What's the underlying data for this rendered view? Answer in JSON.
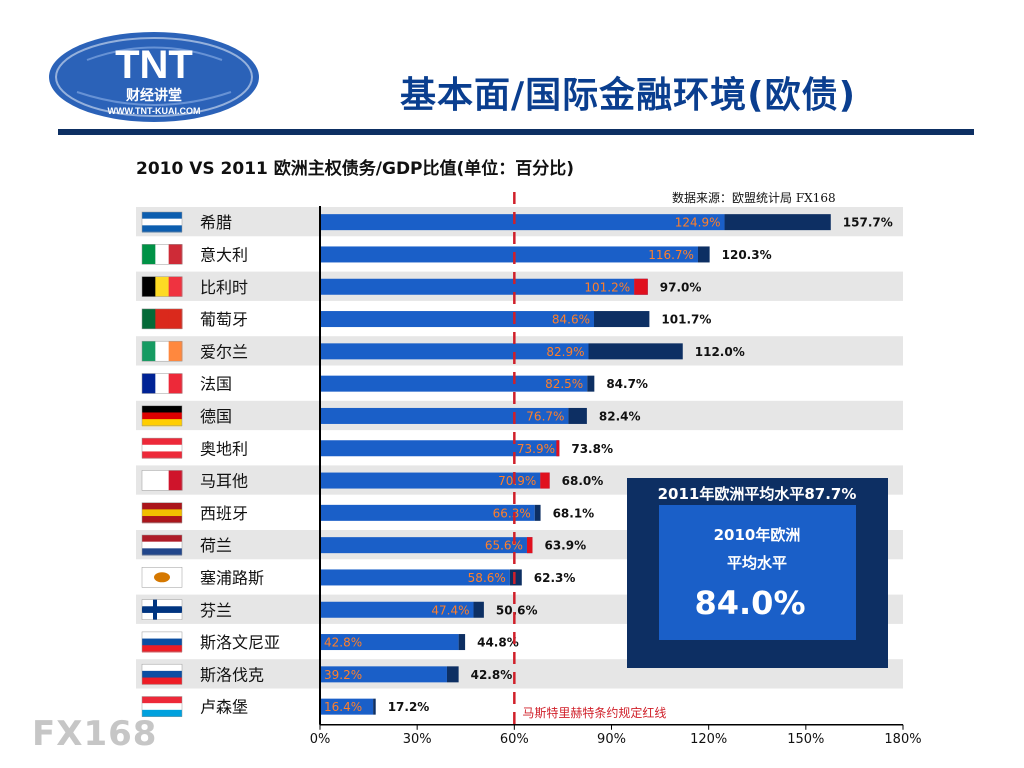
{
  "logo": {
    "brand": "TNT",
    "subtitle": "财经讲堂",
    "url": "WWW.TNT-KUAI.COM"
  },
  "header": {
    "title": "基本面/国际金融环境(欧债)"
  },
  "watermark": "FX168",
  "chart_data": {
    "type": "bar",
    "orientation": "horizontal",
    "title": "2010 VS 2011 欧洲主权债务/GDP比值(单位：百分比)",
    "source": "数据来源：欧盟统计局 FX168",
    "categories": [
      "希腊",
      "意大利",
      "比利时",
      "葡萄牙",
      "爱尔兰",
      "法国",
      "德国",
      "奥地利",
      "马耳他",
      "西班牙",
      "荷兰",
      "塞浦路斯",
      "芬兰",
      "斯洛文尼亚",
      "斯洛伐克",
      "卢森堡"
    ],
    "series": [
      {
        "name": "2010",
        "values": [
          124.9,
          116.7,
          101.2,
          84.6,
          82.9,
          82.5,
          76.7,
          73.9,
          70.9,
          66.3,
          65.6,
          58.6,
          47.4,
          42.8,
          39.2,
          16.4
        ],
        "labels": [
          "124.9%",
          "116.7%",
          "101.2%",
          "84.6%",
          "82.9%",
          "82.5%",
          "76.7%",
          "73.9%",
          "70.9%",
          "66.3%",
          "65.6%",
          "58.6%",
          "47.4%",
          "42.8%",
          "39.2%",
          "16.4%"
        ]
      },
      {
        "name": "2011",
        "values": [
          157.7,
          120.3,
          97.0,
          101.7,
          112.0,
          84.7,
          82.4,
          73.8,
          68.0,
          68.1,
          63.9,
          62.3,
          50.6,
          44.8,
          42.8,
          17.2
        ],
        "labels": [
          "157.7%",
          "120.3%",
          "97.0%",
          "101.7%",
          "112.0%",
          "84.7%",
          "82.4%",
          "73.8%",
          "68.0%",
          "68.1%",
          "63.9%",
          "62.3%",
          "50.6%",
          "44.8%",
          "42.8%",
          "17.2%"
        ]
      }
    ],
    "xlim": [
      0,
      180
    ],
    "xticks": [
      0,
      30,
      60,
      90,
      120,
      150,
      180
    ],
    "xtick_labels": [
      "0%",
      "30%",
      "60%",
      "90%",
      "120%",
      "150%",
      "180%"
    ],
    "reference_line": {
      "value": 60,
      "label": "马斯特里赫特条约规定红线",
      "color": "#d0202a"
    },
    "averages": {
      "avg_2011_label": "2011年欧洲平均水平87.7%",
      "avg_2010_label_line1": "2010年欧洲",
      "avg_2010_label_line2": "平均水平",
      "avg_2010_value": "84.0%"
    },
    "colors": {
      "bar_2010": "#1a5fc8",
      "increase": "#0d2f63",
      "decrease": "#e0101e",
      "label_2010": "#ff7f2a",
      "row_shade": "#e6e6e6",
      "inset_outer": "#0d2f63",
      "inset_inner": "#1a5fc8"
    },
    "grid": false
  }
}
